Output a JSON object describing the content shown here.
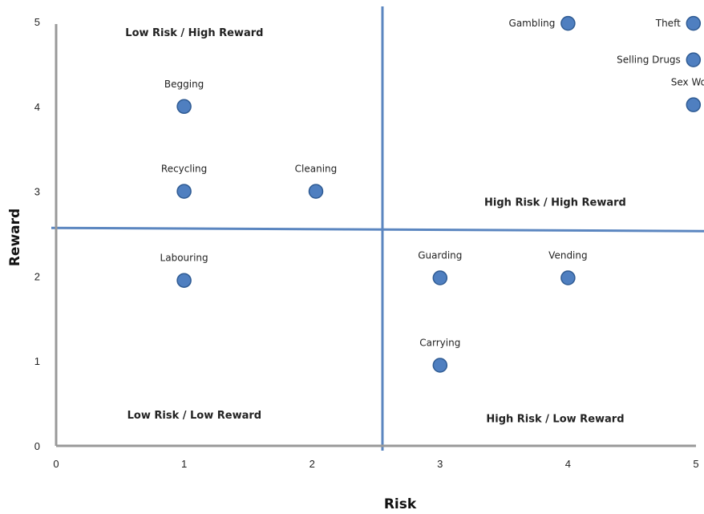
{
  "chart_data": {
    "type": "scatter",
    "xlabel": "Risk",
    "ylabel": "Reward",
    "xlim": [
      0,
      5
    ],
    "ylim": [
      0,
      5
    ],
    "xticks": [
      "0",
      "1",
      "2",
      "3",
      "4",
      "5"
    ],
    "yticks": [
      "0",
      "1",
      "2",
      "3",
      "4",
      "5"
    ],
    "grid": false,
    "colors": {
      "point_fill": "#4f7fc0",
      "point_stroke": "#2f5b93",
      "divider": "#5b86c0",
      "axis": "#999999"
    },
    "points": [
      {
        "label": "Begging",
        "x": 1,
        "y": 4
      },
      {
        "label": "Recycling",
        "x": 1,
        "y": 3
      },
      {
        "label": "Cleaning",
        "x": 2.03,
        "y": 3
      },
      {
        "label": "Labouring",
        "x": 1,
        "y": 1.95
      },
      {
        "label": "Guarding",
        "x": 3,
        "y": 1.98
      },
      {
        "label": "Vending",
        "x": 4,
        "y": 1.98
      },
      {
        "label": "Carrying",
        "x": 3,
        "y": 0.95
      },
      {
        "label": "Gambling",
        "x": 4,
        "y": 4.98
      },
      {
        "label": "Theft",
        "x": 4.98,
        "y": 4.98
      },
      {
        "label": "Selling Drugs",
        "x": 4.98,
        "y": 4.55
      },
      {
        "label": "Sex Work",
        "x": 4.98,
        "y": 4.02
      }
    ],
    "dividers": {
      "x": 2.55,
      "y": 2.55
    },
    "quadrants": [
      {
        "label": "Low Risk / High Reward",
        "x": 1.08,
        "y": 4.83
      },
      {
        "label": "High Risk / High Reward",
        "x": 3.9,
        "y": 2.83
      },
      {
        "label": "Low Risk / Low Reward",
        "x": 1.08,
        "y": 0.32
      },
      {
        "label": "High Risk / Low Reward",
        "x": 3.9,
        "y": 0.28
      }
    ]
  }
}
